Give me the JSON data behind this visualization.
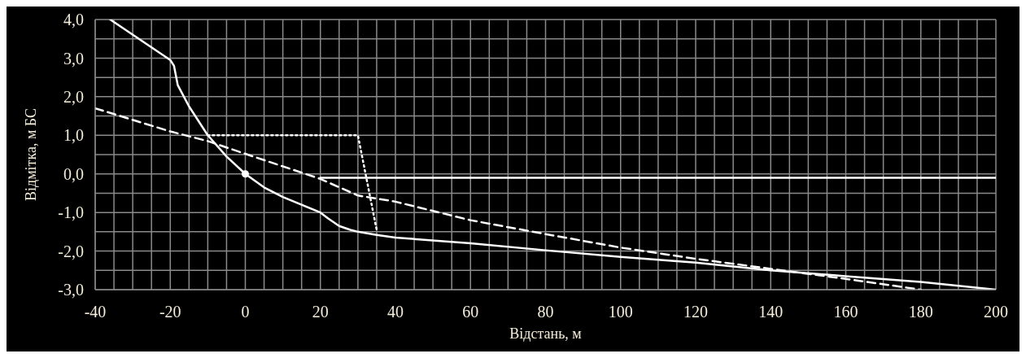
{
  "chart_data": {
    "type": "line",
    "xlabel": "Відстань, м",
    "ylabel": "Відмітка, м БС",
    "xlim": [
      -40,
      200
    ],
    "ylim": [
      -3,
      4
    ],
    "xticks": [
      -40,
      {
        "value": -35,
        "label": null
      },
      {
        "value": -30,
        "label": null
      },
      {
        "value": -25,
        "label": null
      },
      -20,
      {
        "value": -15,
        "label": null
      },
      {
        "value": -10,
        "label": null
      },
      {
        "value": -5,
        "label": null
      },
      0,
      {
        "value": 5,
        "label": null
      },
      {
        "value": 10,
        "label": null
      },
      {
        "value": 15,
        "label": null
      },
      20,
      {
        "value": 25,
        "label": null
      },
      {
        "value": 30,
        "label": null
      },
      {
        "value": 35,
        "label": null
      },
      40,
      {
        "value": 45,
        "label": null
      },
      {
        "value": 50,
        "label": null
      },
      {
        "value": 55,
        "label": null
      },
      60,
      {
        "value": 65,
        "label": null
      },
      {
        "value": 70,
        "label": null
      },
      {
        "value": 75,
        "label": null
      },
      80,
      {
        "value": 85,
        "label": null
      },
      {
        "value": 90,
        "label": null
      },
      {
        "value": 95,
        "label": null
      },
      100,
      {
        "value": 105,
        "label": null
      },
      {
        "value": 110,
        "label": null
      },
      {
        "value": 115,
        "label": null
      },
      120,
      {
        "value": 125,
        "label": null
      },
      {
        "value": 130,
        "label": null
      },
      {
        "value": 135,
        "label": null
      },
      140,
      {
        "value": 145,
        "label": null
      },
      {
        "value": 150,
        "label": null
      },
      {
        "value": 155,
        "label": null
      },
      160,
      {
        "value": 165,
        "label": null
      },
      {
        "value": 170,
        "label": null
      },
      {
        "value": 175,
        "label": null
      },
      180,
      {
        "value": 185,
        "label": null
      },
      {
        "value": 190,
        "label": null
      },
      {
        "value": 195,
        "label": null
      },
      200
    ],
    "yticks": [
      {
        "value": -3,
        "label": "-3,0"
      },
      {
        "value": -2.5,
        "label": null
      },
      {
        "value": -2,
        "label": "-2,0"
      },
      {
        "value": -1.5,
        "label": null
      },
      {
        "value": -1,
        "label": "-1,0"
      },
      {
        "value": -0.5,
        "label": null
      },
      {
        "value": 0,
        "label": "0,0"
      },
      {
        "value": 0.5,
        "label": null
      },
      {
        "value": 1,
        "label": "1,0"
      },
      {
        "value": 1.5,
        "label": null
      },
      {
        "value": 2,
        "label": "2,0"
      },
      {
        "value": 2.5,
        "label": null
      },
      {
        "value": 3,
        "label": "3,0"
      },
      {
        "value": 3.5,
        "label": null
      },
      {
        "value": 4,
        "label": "4,0"
      }
    ],
    "grid": true,
    "series": [
      {
        "color": "#ffffff",
        "line_style": "solid",
        "x": [
          -36,
          -20,
          -19,
          -18,
          -15,
          -10,
          -5,
          0,
          5,
          10,
          15,
          20,
          22,
          25,
          28,
          30,
          35,
          40,
          60,
          80,
          100,
          120,
          140,
          160,
          180,
          200
        ],
        "values": [
          4.0,
          2.95,
          2.8,
          2.3,
          1.75,
          1.0,
          0.45,
          0.0,
          -0.35,
          -0.6,
          -0.8,
          -1.0,
          -1.15,
          -1.35,
          -1.45,
          -1.5,
          -1.58,
          -1.65,
          -1.8,
          -1.98,
          -2.15,
          -2.3,
          -2.5,
          -2.65,
          -2.8,
          -3.0
        ]
      },
      {
        "color": "#ffffff",
        "line_style": "dashed",
        "x": [
          -40,
          -20,
          -10,
          0,
          20,
          30,
          40,
          60,
          80,
          100,
          120,
          140,
          160,
          180
        ],
        "values": [
          1.7,
          1.1,
          0.85,
          0.52,
          -0.13,
          -0.56,
          -0.72,
          -1.2,
          -1.56,
          -1.91,
          -2.2,
          -2.46,
          -2.72,
          -3.0
        ]
      },
      {
        "color": "#ffffff",
        "line_style": "dotted",
        "x": [
          -10,
          30,
          35
        ],
        "values": [
          1.0,
          1.0,
          -1.45
        ]
      },
      {
        "color": "#ffffff",
        "line_style": "solid",
        "x": [
          20,
          200
        ],
        "values": [
          -0.1,
          -0.1
        ]
      },
      {
        "type": "scatter",
        "color": "#ffffff",
        "marker": "circle",
        "x": [
          0
        ],
        "values": [
          0
        ]
      }
    ]
  }
}
